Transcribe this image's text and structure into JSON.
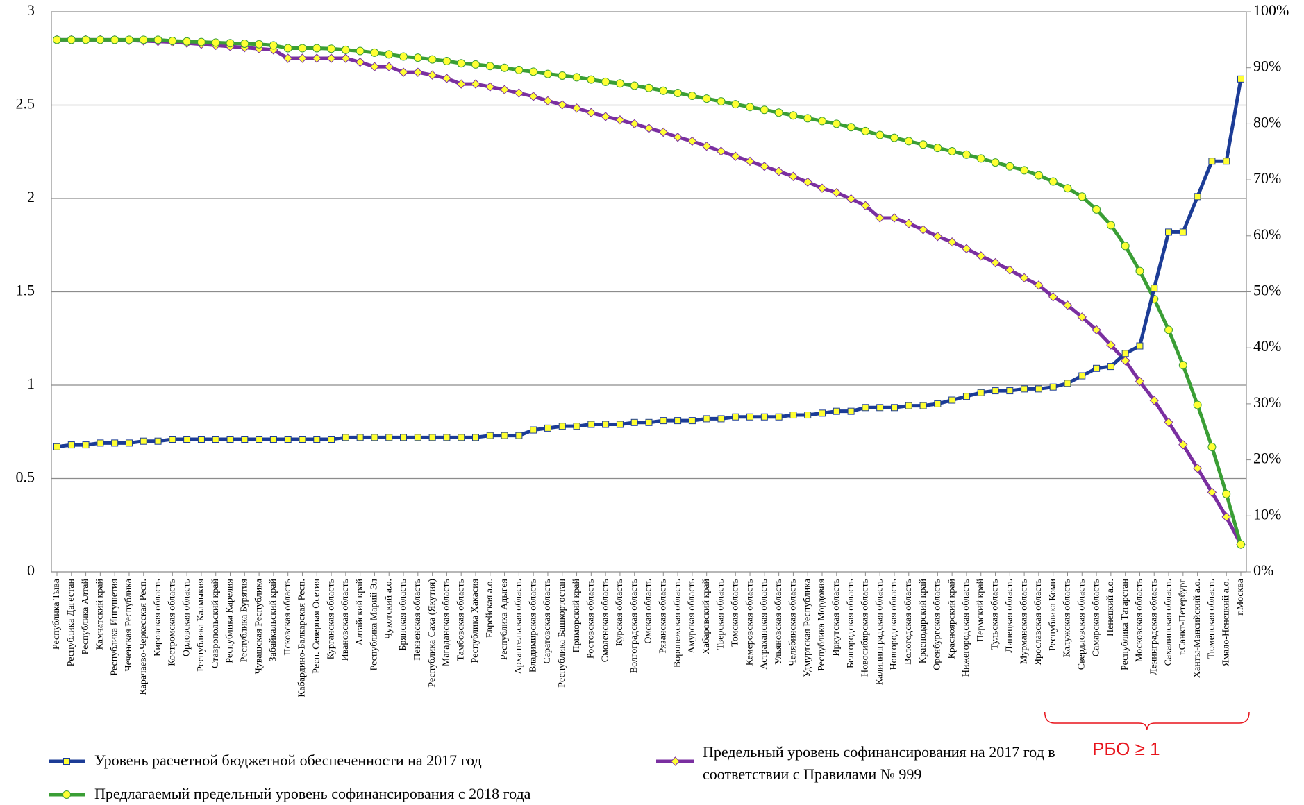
{
  "chart_data": {
    "type": "line",
    "categories": [
      "Республика Тыва",
      "Республика Дагестан",
      "Республика Алтай",
      "Камчатский край",
      "Республика Ингушетия",
      "Чеченская Республика",
      "Карачаево-Черкесская Респ.",
      "Кировская область",
      "Костромская область",
      "Орловская область",
      "Республика Калмыкия",
      "Ставропольский край",
      "Республика Карелия",
      "Республика Бурятия",
      "Чувашская Республика",
      "Забайкальский край",
      "Псковская область",
      "Кабардино-Балкарская Респ.",
      "Респ. Северная Осетия",
      "Курганская область",
      "Ивановская область",
      "Алтайский край",
      "Республика Марий Эл",
      "Чукотский а.о.",
      "Брянская область",
      "Пензенская область",
      "Республика Саха (Якутия)",
      "Магаданская область",
      "Тамбовская область",
      "Республика Хакасия",
      "Еврейская а.о.",
      "Республика Адыгея",
      "Архангельская область",
      "Владимирская область",
      "Саратовская область",
      "Республика Башкортостан",
      "Приморский край",
      "Ростовская область",
      "Смоленская область",
      "Курская область",
      "Волгоградская область",
      "Омская область",
      "Рязанская область",
      "Воронежская область",
      "Амурская область",
      "Хабаровский край",
      "Тверская область",
      "Томская область",
      "Кемеровская область",
      "Астраханская область",
      "Ульяновская область",
      "Челябинская область",
      "Удмуртская Республика",
      "Республика Мордовия",
      "Иркутская область",
      "Белгородская область",
      "Новосибирская область",
      "Калининградская область",
      "Новгородская область",
      "Вологодская область",
      "Краснодарский край",
      "Оренбургская область",
      "Красноярский край",
      "Нижегородская область",
      "Пермский край",
      "Тульская область",
      "Липецкая область",
      "Мурманская область",
      "Ярославская область",
      "Республика Коми",
      "Калужская область",
      "Свердловская область",
      "Самарская область",
      "Ненецкий а.о.",
      "Республика Татарстан",
      "Московская область",
      "Ленинградская область",
      "Сахалинская область",
      "г.Санкт-Петербург",
      "Ханты-Мансийский а.о.",
      "Тюменская область",
      "Ямало-Ненецкий а.о.",
      "г.Москва"
    ],
    "series": [
      {
        "name": "Уровень расчетной бюджетной обеспеченности на 2017 год",
        "color": "#1c3c96",
        "marker": "square",
        "axis": "y",
        "values": [
          0.67,
          0.68,
          0.68,
          0.69,
          0.69,
          0.69,
          0.7,
          0.7,
          0.71,
          0.71,
          0.71,
          0.71,
          0.71,
          0.71,
          0.71,
          0.71,
          0.71,
          0.71,
          0.71,
          0.71,
          0.72,
          0.72,
          0.72,
          0.72,
          0.72,
          0.72,
          0.72,
          0.72,
          0.72,
          0.72,
          0.73,
          0.73,
          0.73,
          0.76,
          0.77,
          0.78,
          0.78,
          0.79,
          0.79,
          0.79,
          0.8,
          0.8,
          0.81,
          0.81,
          0.81,
          0.82,
          0.82,
          0.83,
          0.83,
          0.83,
          0.83,
          0.84,
          0.84,
          0.85,
          0.86,
          0.86,
          0.88,
          0.88,
          0.88,
          0.89,
          0.89,
          0.9,
          0.92,
          0.94,
          0.96,
          0.97,
          0.97,
          0.98,
          0.98,
          0.99,
          1.01,
          1.05,
          1.09,
          1.1,
          1.17,
          1.21,
          1.52,
          1.82,
          1.82,
          2.01,
          2.2,
          2.2,
          2.64
        ]
      },
      {
        "name": "Предлагаемый предельный уровень софинансирования с 2018 года",
        "color": "#3a9e35",
        "marker": "circle",
        "axis": "y2",
        "values": [
          95,
          95,
          95,
          95,
          95,
          95,
          95,
          95,
          94.8,
          94.7,
          94.6,
          94.5,
          94.4,
          94.3,
          94.2,
          94,
          93.5,
          93.5,
          93.5,
          93.4,
          93.2,
          93,
          92.7,
          92.4,
          92.0,
          91.8,
          91.5,
          91.2,
          90.8,
          90.6,
          90.3,
          90.0,
          89.6,
          89.3,
          88.9,
          88.6,
          88.3,
          87.9,
          87.5,
          87.2,
          86.8,
          86.4,
          85.9,
          85.5,
          85.0,
          84.5,
          84.0,
          83.5,
          83.0,
          82.5,
          82.0,
          81.5,
          81.0,
          80.5,
          80.0,
          79.4,
          78.7,
          78.0,
          77.5,
          76.9,
          76.3,
          75.7,
          75.1,
          74.5,
          73.8,
          73.1,
          72.4,
          71.7,
          70.8,
          69.7,
          68.5,
          67,
          64.7,
          61.9,
          58.2,
          53.7,
          48.7,
          43.2,
          36.9,
          29.8,
          22.3,
          13.9,
          4.9
        ]
      },
      {
        "name": "Предельный уровень софинансирования на 2017 год в соответствии с Правилами № 999",
        "color": "#7a2fa0",
        "marker": "diamond",
        "axis": "y2",
        "values": [
          95,
          95,
          95,
          95,
          95,
          94.9,
          94.8,
          94.7,
          94.6,
          94.4,
          94.2,
          94.0,
          93.8,
          93.6,
          93.4,
          93.2,
          91.7,
          91.7,
          91.7,
          91.7,
          91.7,
          91,
          90.2,
          90.2,
          89.2,
          89.2,
          88.7,
          88.1,
          87.1,
          87.1,
          86.6,
          86.1,
          85.5,
          84.9,
          84.1,
          83.4,
          82.8,
          82,
          81.3,
          80.7,
          80,
          79.2,
          78.5,
          77.6,
          76.9,
          76,
          75.1,
          74.2,
          73.3,
          72.4,
          71.5,
          70.6,
          69.6,
          68.5,
          67.7,
          66.6,
          65.4,
          63.2,
          63.2,
          62.2,
          61.1,
          59.9,
          58.9,
          57.7,
          56.4,
          55.2,
          53.9,
          52.5,
          51.2,
          49.1,
          47.6,
          45.5,
          43.2,
          40.5,
          37.7,
          34,
          30.6,
          26.7,
          22.7,
          18.5,
          14.2,
          9.8,
          4.9
        ]
      }
    ],
    "ylim": [
      0,
      3
    ],
    "yticks": [
      0,
      0.5,
      1,
      1.5,
      2,
      2.5,
      3
    ],
    "y2lim": [
      0,
      100
    ],
    "y2ticks": [
      {
        "value": 0,
        "label": "0%"
      },
      {
        "value": 10,
        "label": "10%"
      },
      {
        "value": 20,
        "label": "20%"
      },
      {
        "value": 30,
        "label": "30%"
      },
      {
        "value": 40,
        "label": "40%"
      },
      {
        "value": 50,
        "label": "50%"
      },
      {
        "value": 60,
        "label": "60%"
      },
      {
        "value": 70,
        "label": "70%"
      },
      {
        "value": 80,
        "label": "80%"
      },
      {
        "value": 90,
        "label": "90%"
      },
      {
        "value": 100,
        "label": "100%"
      }
    ],
    "grid": true,
    "marker_color": "#ffff33",
    "annotation": "РБО ≥ 1"
  }
}
